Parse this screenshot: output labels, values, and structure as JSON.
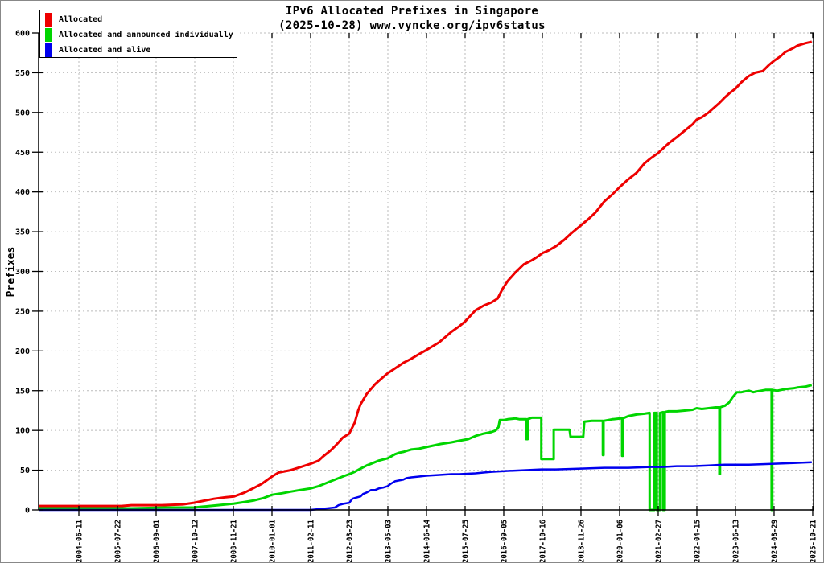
{
  "chart_data": {
    "type": "line",
    "title": "IPv6 Allocated Prefixes in Singapore",
    "subtitle": "(2025-10-28) www.vyncke.org/ipv6status",
    "ylabel": "Prefixes",
    "xlabel": "",
    "ylim": [
      0,
      600
    ],
    "y_tick_step": 50,
    "grid": true,
    "legend_position": "top-left",
    "x_range_years": [
      2003.3,
      2025.851
    ],
    "x_tick_start_year": 2004.471,
    "x_tick_step_years": 1.124,
    "x_tick_labels": [
      "2004-06-11",
      "2005-07-22",
      "2006-09-01",
      "2007-10-12",
      "2008-11-21",
      "2010-01-01",
      "2011-02-11",
      "2012-03-23",
      "2013-05-03",
      "2014-06-14",
      "2015-07-25",
      "2016-09-05",
      "2017-10-16",
      "2018-11-26",
      "2020-01-06",
      "2021-02-27",
      "2022-04-15",
      "2023-06-13",
      "2024-08-29",
      "2025-10-21"
    ],
    "series": [
      {
        "name": "Allocated",
        "color": "#ee0000",
        "width": 3,
        "points": [
          [
            2003.3,
            5
          ],
          [
            2005.0,
            5
          ],
          [
            2005.71,
            5
          ],
          [
            2006.0,
            6
          ],
          [
            2006.88,
            6
          ],
          [
            2007.5,
            7
          ],
          [
            2007.82,
            9
          ],
          [
            2008.05,
            11
          ],
          [
            2008.4,
            14
          ],
          [
            2008.75,
            16
          ],
          [
            2008.99,
            17
          ],
          [
            2009.3,
            22
          ],
          [
            2009.58,
            28
          ],
          [
            2009.8,
            33
          ],
          [
            2010.09,
            42
          ],
          [
            2010.28,
            47
          ],
          [
            2010.63,
            50
          ],
          [
            2010.86,
            53
          ],
          [
            2011.21,
            58
          ],
          [
            2011.45,
            62
          ],
          [
            2011.57,
            67
          ],
          [
            2011.8,
            75
          ],
          [
            2011.92,
            80
          ],
          [
            2012.03,
            85
          ],
          [
            2012.15,
            91
          ],
          [
            2012.34,
            96
          ],
          [
            2012.5,
            110
          ],
          [
            2012.6,
            125
          ],
          [
            2012.67,
            133
          ],
          [
            2012.85,
            146
          ],
          [
            2013.09,
            158
          ],
          [
            2013.3,
            166
          ],
          [
            2013.46,
            172
          ],
          [
            2013.67,
            178
          ],
          [
            2013.91,
            185
          ],
          [
            2014.14,
            190
          ],
          [
            2014.37,
            196
          ],
          [
            2014.58,
            201
          ],
          [
            2014.96,
            211
          ],
          [
            2015.31,
            224
          ],
          [
            2015.54,
            231
          ],
          [
            2015.71,
            237
          ],
          [
            2016.01,
            251
          ],
          [
            2016.25,
            257
          ],
          [
            2016.48,
            261
          ],
          [
            2016.66,
            266
          ],
          [
            2016.8,
            278
          ],
          [
            2016.95,
            288
          ],
          [
            2017.18,
            299
          ],
          [
            2017.42,
            309
          ],
          [
            2017.65,
            314
          ],
          [
            2017.8,
            318
          ],
          [
            2017.96,
            323
          ],
          [
            2018.12,
            326
          ],
          [
            2018.36,
            332
          ],
          [
            2018.6,
            340
          ],
          [
            2018.8,
            348
          ],
          [
            2019.08,
            358
          ],
          [
            2019.3,
            366
          ],
          [
            2019.5,
            374
          ],
          [
            2019.76,
            388
          ],
          [
            2020.0,
            397
          ],
          [
            2020.23,
            407
          ],
          [
            2020.46,
            416
          ],
          [
            2020.7,
            424
          ],
          [
            2020.93,
            436
          ],
          [
            2021.1,
            442
          ],
          [
            2021.33,
            449
          ],
          [
            2021.63,
            461
          ],
          [
            2021.87,
            469
          ],
          [
            2022.1,
            477
          ],
          [
            2022.33,
            485
          ],
          [
            2022.45,
            491
          ],
          [
            2022.6,
            494
          ],
          [
            2022.8,
            500
          ],
          [
            2023.11,
            512
          ],
          [
            2023.27,
            519
          ],
          [
            2023.4,
            524
          ],
          [
            2023.58,
            530
          ],
          [
            2023.75,
            538
          ],
          [
            2023.97,
            546
          ],
          [
            2024.15,
            550
          ],
          [
            2024.37,
            552
          ],
          [
            2024.56,
            560
          ],
          [
            2024.7,
            565
          ],
          [
            2024.9,
            571
          ],
          [
            2025.03,
            576
          ],
          [
            2025.26,
            581
          ],
          [
            2025.38,
            584
          ],
          [
            2025.61,
            587
          ],
          [
            2025.8,
            589
          ]
        ]
      },
      {
        "name": "Allocated and announced individually",
        "color": "#00d500",
        "width": 3,
        "points": [
          [
            2003.3,
            2
          ],
          [
            2006.0,
            2
          ],
          [
            2007.0,
            3
          ],
          [
            2007.82,
            3
          ],
          [
            2008.05,
            4
          ],
          [
            2008.52,
            6
          ],
          [
            2008.99,
            8
          ],
          [
            2009.3,
            10
          ],
          [
            2009.58,
            12
          ],
          [
            2009.85,
            15
          ],
          [
            2010.09,
            19
          ],
          [
            2010.4,
            21
          ],
          [
            2010.63,
            23
          ],
          [
            2010.9,
            25
          ],
          [
            2011.21,
            27
          ],
          [
            2011.45,
            30
          ],
          [
            2011.57,
            32
          ],
          [
            2011.8,
            36
          ],
          [
            2011.92,
            38
          ],
          [
            2012.15,
            42
          ],
          [
            2012.34,
            45
          ],
          [
            2012.5,
            48
          ],
          [
            2012.67,
            52
          ],
          [
            2012.85,
            56
          ],
          [
            2012.97,
            58
          ],
          [
            2013.2,
            62
          ],
          [
            2013.46,
            65
          ],
          [
            2013.67,
            70
          ],
          [
            2013.8,
            72
          ],
          [
            2013.91,
            73
          ],
          [
            2014.14,
            76
          ],
          [
            2014.37,
            77
          ],
          [
            2014.58,
            79
          ],
          [
            2014.8,
            81
          ],
          [
            2015.0,
            83
          ],
          [
            2015.31,
            85
          ],
          [
            2015.54,
            87
          ],
          [
            2015.8,
            89
          ],
          [
            2016.01,
            93
          ],
          [
            2016.25,
            96
          ],
          [
            2016.48,
            98
          ],
          [
            2016.6,
            100
          ],
          [
            2016.68,
            104
          ],
          [
            2016.72,
            113
          ],
          [
            2016.83,
            113
          ],
          [
            2016.95,
            114
          ],
          [
            2017.18,
            115
          ],
          [
            2017.3,
            114
          ],
          [
            2017.42,
            114
          ],
          [
            2017.49,
            114
          ],
          [
            2017.49,
            89
          ],
          [
            2017.53,
            89
          ],
          [
            2017.53,
            114
          ],
          [
            2017.65,
            116
          ],
          [
            2017.8,
            116
          ],
          [
            2017.93,
            116
          ],
          [
            2017.93,
            64
          ],
          [
            2018.29,
            64
          ],
          [
            2018.29,
            101
          ],
          [
            2018.59,
            101
          ],
          [
            2018.75,
            101
          ],
          [
            2018.78,
            92
          ],
          [
            2019.15,
            92
          ],
          [
            2019.18,
            111
          ],
          [
            2019.4,
            112
          ],
          [
            2019.6,
            112
          ],
          [
            2019.72,
            112
          ],
          [
            2019.72,
            69
          ],
          [
            2019.74,
            69
          ],
          [
            2019.74,
            112
          ],
          [
            2020.0,
            114
          ],
          [
            2020.23,
            115
          ],
          [
            2020.28,
            115
          ],
          [
            2020.28,
            68
          ],
          [
            2020.3,
            68
          ],
          [
            2020.3,
            115
          ],
          [
            2020.46,
            118
          ],
          [
            2020.7,
            120
          ],
          [
            2020.93,
            121
          ],
          [
            2021.08,
            122
          ],
          [
            2021.08,
            0
          ],
          [
            2021.22,
            0
          ],
          [
            2021.22,
            122
          ],
          [
            2021.29,
            122
          ],
          [
            2021.29,
            0
          ],
          [
            2021.38,
            0
          ],
          [
            2021.38,
            122
          ],
          [
            2021.47,
            123
          ],
          [
            2021.47,
            0
          ],
          [
            2021.52,
            0
          ],
          [
            2021.52,
            123
          ],
          [
            2021.63,
            124
          ],
          [
            2021.87,
            124
          ],
          [
            2022.1,
            125
          ],
          [
            2022.33,
            126
          ],
          [
            2022.45,
            128
          ],
          [
            2022.6,
            127
          ],
          [
            2022.8,
            128
          ],
          [
            2023.0,
            129
          ],
          [
            2023.11,
            129
          ],
          [
            2023.11,
            45
          ],
          [
            2023.13,
            45
          ],
          [
            2023.13,
            129
          ],
          [
            2023.27,
            131
          ],
          [
            2023.39,
            135
          ],
          [
            2023.5,
            142
          ],
          [
            2023.62,
            148
          ],
          [
            2023.75,
            148
          ],
          [
            2023.86,
            149
          ],
          [
            2023.97,
            150
          ],
          [
            2024.1,
            148
          ],
          [
            2024.2,
            149
          ],
          [
            2024.32,
            150
          ],
          [
            2024.45,
            151
          ],
          [
            2024.56,
            151
          ],
          [
            2024.63,
            151
          ],
          [
            2024.63,
            0
          ],
          [
            2024.65,
            0
          ],
          [
            2024.65,
            151
          ],
          [
            2024.79,
            150
          ],
          [
            2025.03,
            152
          ],
          [
            2025.26,
            153
          ],
          [
            2025.38,
            154
          ],
          [
            2025.61,
            155
          ],
          [
            2025.7,
            156
          ],
          [
            2025.8,
            157
          ]
        ]
      },
      {
        "name": "Allocated and alive",
        "color": "#0000ee",
        "width": 2.5,
        "points": [
          [
            2003.3,
            0
          ],
          [
            2011.21,
            0
          ],
          [
            2011.45,
            1
          ],
          [
            2011.7,
            2
          ],
          [
            2011.92,
            3
          ],
          [
            2012.03,
            6
          ],
          [
            2012.2,
            8
          ],
          [
            2012.34,
            9
          ],
          [
            2012.43,
            14
          ],
          [
            2012.5,
            15
          ],
          [
            2012.67,
            17
          ],
          [
            2012.74,
            20
          ],
          [
            2012.85,
            22
          ],
          [
            2012.97,
            25
          ],
          [
            2013.09,
            25
          ],
          [
            2013.2,
            27
          ],
          [
            2013.32,
            28
          ],
          [
            2013.46,
            30
          ],
          [
            2013.55,
            33
          ],
          [
            2013.67,
            36
          ],
          [
            2013.91,
            38
          ],
          [
            2014.0,
            40
          ],
          [
            2014.14,
            41
          ],
          [
            2014.37,
            42
          ],
          [
            2014.58,
            43
          ],
          [
            2014.96,
            44
          ],
          [
            2015.31,
            45
          ],
          [
            2015.54,
            45
          ],
          [
            2016.01,
            46
          ],
          [
            2016.25,
            47
          ],
          [
            2016.48,
            48
          ],
          [
            2016.9,
            49
          ],
          [
            2017.42,
            50
          ],
          [
            2017.93,
            51
          ],
          [
            2018.36,
            51
          ],
          [
            2019.08,
            52
          ],
          [
            2019.76,
            53
          ],
          [
            2020.46,
            53
          ],
          [
            2021.1,
            54
          ],
          [
            2021.45,
            54
          ],
          [
            2021.87,
            55
          ],
          [
            2022.33,
            55
          ],
          [
            2022.8,
            56
          ],
          [
            2023.27,
            57
          ],
          [
            2023.97,
            57
          ],
          [
            2024.63,
            58
          ],
          [
            2025.26,
            59
          ],
          [
            2025.8,
            60
          ]
        ]
      }
    ],
    "colors": {
      "grid": "#bcbcbc",
      "axis": "#000000",
      "background": "#ffffff"
    }
  }
}
